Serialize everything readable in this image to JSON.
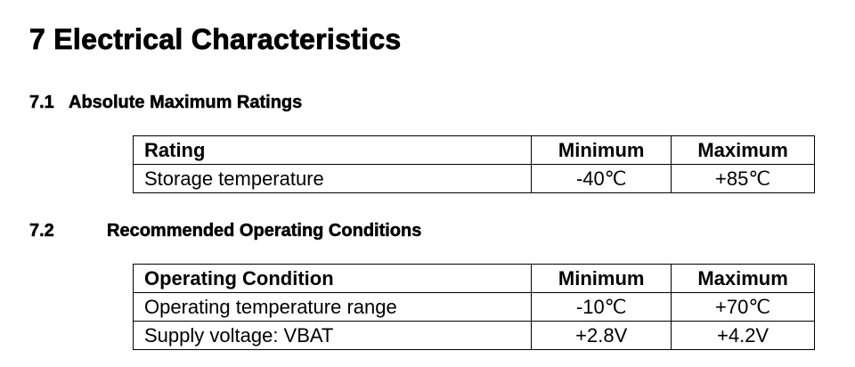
{
  "header": {
    "title": "7 Electrical Characteristics"
  },
  "sections": [
    {
      "number": "7.1",
      "title": "Absolute Maximum Ratings",
      "table": {
        "columns": [
          "Rating",
          "Minimum",
          "Maximum"
        ],
        "rows": [
          [
            "Storage temperature",
            "-40℃",
            "+85℃"
          ]
        ]
      }
    },
    {
      "number": "7.2",
      "title": "Recommended Operating Conditions",
      "table": {
        "columns": [
          "Operating Condition",
          "Minimum",
          "Maximum"
        ],
        "rows": [
          [
            "Operating temperature range",
            "-10℃",
            "+70℃"
          ],
          [
            "Supply voltage: VBAT",
            "+2.8V",
            "+4.2V"
          ]
        ]
      }
    }
  ]
}
